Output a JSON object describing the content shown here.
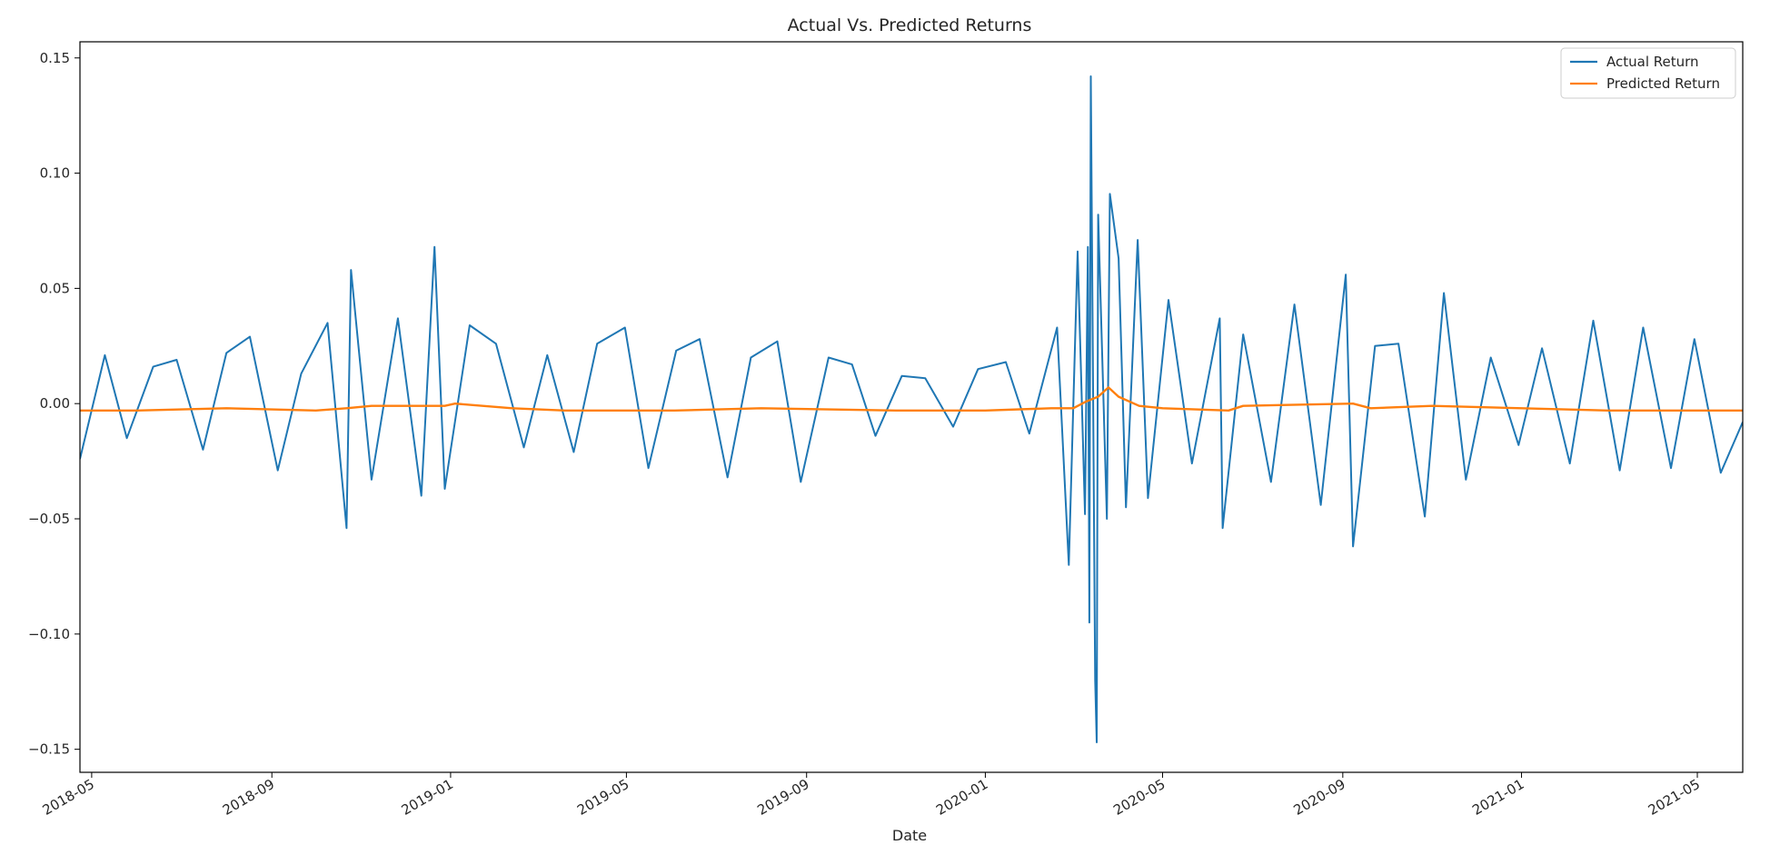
{
  "chart_data": {
    "type": "line",
    "title": "Actual Vs. Predicted Returns",
    "xlabel": "Date",
    "ylabel": "",
    "ylim": [
      -0.16,
      0.157
    ],
    "xlim": [
      "2018-04-23",
      "2021-06-01"
    ],
    "yticks": [
      0.15,
      0.1,
      0.05,
      0.0,
      -0.05,
      -0.1,
      -0.15
    ],
    "ytick_labels": [
      "0.15",
      "0.10",
      "0.05",
      "0.00",
      "−0.05",
      "−0.10",
      "−0.15"
    ],
    "xticks": [
      "2018-05-01",
      "2018-09-01",
      "2019-01-01",
      "2019-05-01",
      "2019-09-01",
      "2020-01-01",
      "2020-05-01",
      "2020-09-01",
      "2021-01-01",
      "2021-05-01"
    ],
    "xtick_labels": [
      "2018-05",
      "2018-09",
      "2019-01",
      "2019-05",
      "2019-09",
      "2020-01",
      "2020-05",
      "2020-09",
      "2021-01",
      "2021-05"
    ],
    "grid": false,
    "legend_position": "top-right",
    "series": [
      {
        "name": "Actual Return",
        "color": "#1f77b4",
        "x": [
          "2018-04-23",
          "2018-05-10",
          "2018-05-25",
          "2018-06-12",
          "2018-06-28",
          "2018-07-16",
          "2018-08-01",
          "2018-08-17",
          "2018-09-05",
          "2018-09-21",
          "2018-10-09",
          "2018-10-22",
          "2018-10-25",
          "2018-11-08",
          "2018-11-26",
          "2018-12-12",
          "2018-12-21",
          "2018-12-28",
          "2019-01-14",
          "2019-02-01",
          "2019-02-20",
          "2019-03-08",
          "2019-03-26",
          "2019-04-11",
          "2019-04-30",
          "2019-05-16",
          "2019-06-04",
          "2019-06-20",
          "2019-07-09",
          "2019-07-25",
          "2019-08-12",
          "2019-08-28",
          "2019-09-16",
          "2019-10-02",
          "2019-10-18",
          "2019-11-05",
          "2019-11-21",
          "2019-12-10",
          "2019-12-27",
          "2020-01-15",
          "2020-01-31",
          "2020-02-19",
          "2020-02-27",
          "2020-03-04",
          "2020-03-09",
          "2020-03-11",
          "2020-03-12",
          "2020-03-13",
          "2020-03-16",
          "2020-03-17",
          "2020-03-18",
          "2020-03-24",
          "2020-03-26",
          "2020-04-01",
          "2020-04-06",
          "2020-04-14",
          "2020-04-21",
          "2020-05-05",
          "2020-05-21",
          "2020-06-09",
          "2020-06-11",
          "2020-06-25",
          "2020-07-14",
          "2020-07-30",
          "2020-08-17",
          "2020-09-03",
          "2020-09-08",
          "2020-09-23",
          "2020-10-09",
          "2020-10-27",
          "2020-11-09",
          "2020-11-24",
          "2020-12-11",
          "2020-12-30",
          "2021-01-15",
          "2021-02-03",
          "2021-02-19",
          "2021-03-09",
          "2021-03-25",
          "2021-04-13",
          "2021-04-29",
          "2021-05-17",
          "2021-06-01"
        ],
        "values": [
          -0.024,
          0.021,
          -0.015,
          0.016,
          0.019,
          -0.02,
          0.022,
          0.029,
          -0.029,
          0.013,
          0.035,
          -0.054,
          0.058,
          -0.033,
          0.037,
          -0.04,
          0.068,
          -0.037,
          0.034,
          0.026,
          -0.019,
          0.021,
          -0.021,
          0.026,
          0.033,
          -0.028,
          0.023,
          0.028,
          -0.032,
          0.02,
          0.027,
          -0.034,
          0.02,
          0.017,
          -0.014,
          0.012,
          0.011,
          -0.01,
          0.015,
          0.018,
          -0.013,
          0.033,
          -0.07,
          0.066,
          -0.048,
          0.068,
          -0.095,
          0.142,
          -0.12,
          -0.147,
          0.082,
          -0.05,
          0.091,
          0.063,
          -0.045,
          0.071,
          -0.041,
          0.045,
          -0.026,
          0.037,
          -0.054,
          0.03,
          -0.034,
          0.043,
          -0.044,
          0.056,
          -0.062,
          0.025,
          0.026,
          -0.049,
          0.048,
          -0.033,
          0.02,
          -0.018,
          0.024,
          -0.026,
          0.036,
          -0.029,
          0.033,
          -0.028,
          0.028,
          -0.03,
          -0.008
        ]
      },
      {
        "name": "Predicted Return",
        "color": "#ff7f0e",
        "x": [
          "2018-04-23",
          "2018-06-01",
          "2018-08-01",
          "2018-10-01",
          "2018-10-22",
          "2018-11-08",
          "2018-12-28",
          "2019-01-04",
          "2019-02-12",
          "2019-03-20",
          "2019-06-03",
          "2019-08-01",
          "2019-11-01",
          "2020-01-01",
          "2020-02-15",
          "2020-03-01",
          "2020-03-10",
          "2020-03-18",
          "2020-03-25",
          "2020-04-01",
          "2020-04-15",
          "2020-05-01",
          "2020-06-15",
          "2020-06-25",
          "2020-09-08",
          "2020-09-20",
          "2020-11-01",
          "2021-01-01",
          "2021-03-01",
          "2021-06-01"
        ],
        "values": [
          -0.003,
          -0.003,
          -0.002,
          -0.003,
          -0.002,
          -0.001,
          -0.001,
          0.0,
          -0.002,
          -0.003,
          -0.003,
          -0.002,
          -0.003,
          -0.003,
          -0.002,
          -0.002,
          0.001,
          0.003,
          0.007,
          0.003,
          -0.001,
          -0.002,
          -0.003,
          -0.001,
          0.0,
          -0.002,
          -0.001,
          -0.002,
          -0.003,
          -0.003
        ]
      }
    ]
  }
}
